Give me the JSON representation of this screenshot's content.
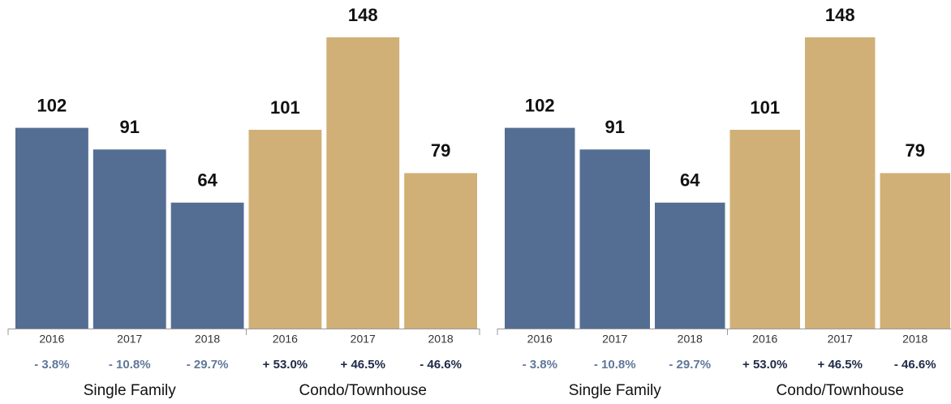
{
  "chart_data": [
    {
      "type": "bar",
      "groups": [
        {
          "name": "Single Family",
          "color": "#546e93",
          "change_color": "#5f7799",
          "categories": [
            "2016",
            "2017",
            "2018"
          ],
          "values": [
            102,
            91,
            64
          ],
          "changes": [
            "- 3.8%",
            "- 10.8%",
            "- 29.7%"
          ]
        },
        {
          "name": "Condo/Townhouse",
          "color": "#d0b077",
          "change_color": "#1e2a48",
          "categories": [
            "2016",
            "2017",
            "2018"
          ],
          "values": [
            101,
            148,
            79
          ],
          "changes": [
            "+ 53.0%",
            "+ 46.5%",
            "- 46.6%"
          ]
        }
      ]
    },
    {
      "type": "bar",
      "groups": [
        {
          "name": "Single Family",
          "color": "#546e93",
          "change_color": "#5f7799",
          "categories": [
            "2016",
            "2017",
            "2018"
          ],
          "values": [
            102,
            91,
            64
          ],
          "changes": [
            "- 3.8%",
            "- 10.8%",
            "- 29.7%"
          ]
        },
        {
          "name": "Condo/Townhouse",
          "color": "#d0b077",
          "change_color": "#1e2a48",
          "categories": [
            "2016",
            "2017",
            "2018"
          ],
          "values": [
            101,
            148,
            79
          ],
          "changes": [
            "+ 53.0%",
            "+ 46.5%",
            "- 46.6%"
          ]
        }
      ]
    }
  ]
}
